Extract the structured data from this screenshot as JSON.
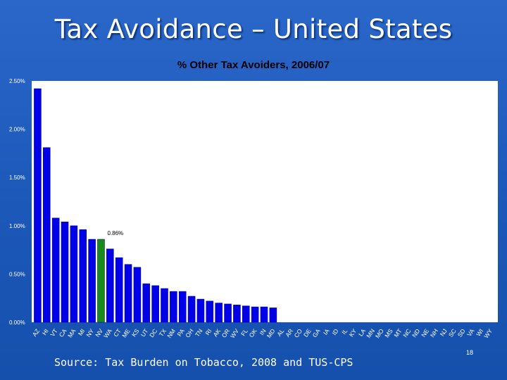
{
  "slide": {
    "title": "Tax Avoidance – United States",
    "source": "Source: Tax Burden on Tobacco, 2008 and TUS-CPS",
    "page_number": "18"
  },
  "chart_data": {
    "type": "bar",
    "title": "% Other Tax Avoiders, 2006/07",
    "xlabel": "",
    "ylabel": "",
    "ylim": [
      0,
      0.025
    ],
    "yticks": [
      {
        "value": 0.0,
        "label": "0.00%"
      },
      {
        "value": 0.005,
        "label": "0.50%"
      },
      {
        "value": 0.01,
        "label": "1.00%"
      },
      {
        "value": 0.015,
        "label": "1.50%"
      },
      {
        "value": 0.02,
        "label": "2.00%"
      },
      {
        "value": 0.025,
        "label": "2.50%"
      }
    ],
    "grid": false,
    "colors": {
      "default": "#0000e8",
      "highlight": "#1a8a1a",
      "plot_background": "#ffffff"
    },
    "highlight_index": 7,
    "data_labels": [
      {
        "index": 7,
        "text": "0.86%"
      }
    ],
    "categories": [
      "AZ",
      "HI",
      "VT",
      "CA",
      "MA",
      "MI",
      "NY",
      "NV",
      "WA",
      "CT",
      "ME",
      "KS",
      "UT",
      "DC",
      "TX",
      "NM",
      "PA",
      "OH",
      "TN",
      "RI",
      "AK",
      "OR",
      "WV",
      "FL",
      "OK",
      "IN",
      "MD",
      "AL",
      "AR",
      "CO",
      "DE",
      "GA",
      "IA",
      "ID",
      "IL",
      "KY",
      "LA",
      "MN",
      "MO",
      "MS",
      "MT",
      "NC",
      "ND",
      "NE",
      "NH",
      "NJ",
      "SC",
      "SD",
      "VA",
      "WI",
      "WY"
    ],
    "values": [
      0.0242,
      0.0181,
      0.0108,
      0.0104,
      0.01,
      0.0096,
      0.0086,
      0.0086,
      0.0076,
      0.0067,
      0.006,
      0.0057,
      0.004,
      0.0038,
      0.0035,
      0.0032,
      0.0032,
      0.0027,
      0.0024,
      0.0022,
      0.002,
      0.0019,
      0.0018,
      0.0017,
      0.0016,
      0.0016,
      0.0015,
      0,
      0,
      0,
      0,
      0,
      0,
      0,
      0,
      0,
      0,
      0,
      0,
      0,
      0,
      0,
      0,
      0,
      0,
      0,
      0,
      0,
      0,
      0,
      0
    ]
  }
}
